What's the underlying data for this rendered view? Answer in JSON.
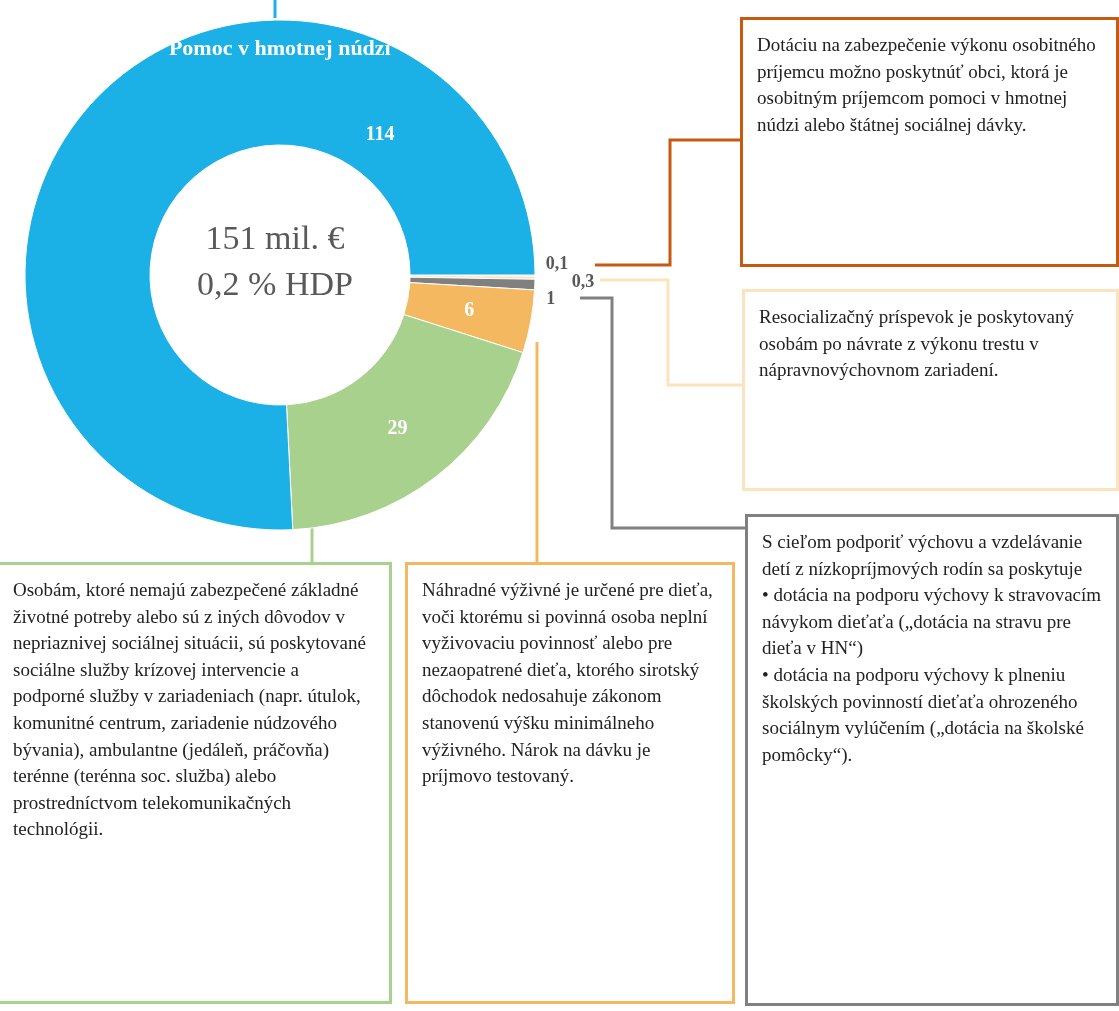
{
  "chart_data": {
    "type": "donut",
    "categories": [
      null,
      null,
      null,
      null,
      null,
      "Pomoc v hmotnej núdzi"
    ],
    "values": [
      0.1,
      0.3,
      1,
      6,
      29,
      114
    ],
    "value_labels": [
      "0,1",
      "0,3",
      "1",
      "6",
      "29",
      "114"
    ],
    "colors": [
      "#c55a11",
      "#fde3bd",
      "#808080",
      "#f4b860",
      "#a9d18e",
      "#1bb1e7"
    ],
    "annotations": [
      "151 mil. €\n0,2 % HDP",
      "Dotáciu na zabezpečenie výkonu osobitného príjemcu možno poskytnúť obci, ktorá je osobitným príjemcom pomoci v hmotnej núdzi alebo štátnej sociálnej dávky.",
      "Resocializačný príspevok je poskytovaný osobám po návrate z výkonu trestu v nápravnovýchovnom zariadení.",
      "S cieľom podporiť výchovu a vzdelávanie detí z nízkopríjmových rodín sa poskytuje\n• dotácia na podporu výchovy k stravovacím návykom dieťaťa („dotácia na stravu pre dieťa v HN“)\n• dotácia na podporu výchovy k plneniu školských povinností dieťaťa ohrozeného sociálnym vylúčením („dotácia na školské pomôcky“).",
      "Náhradné výživné je určené pre dieťa, voči ktorému si povinná osoba neplní vyživovaciu povinnosť alebo pre nezaopatrené dieťa, ktorého sirotský dôchodok nedosahuje zákonom stanovenú výšku minimálneho výživného. Nárok na dávku je príjmovo testovaný.",
      "Osobám, ktoré nemajú zabezpečené základné životné potreby alebo sú z iných dôvodov v nepriaznivej sociálnej situácii, sú poskytované sociálne služby krízovej intervencie a podporné služby v zariadeniach (napr. útulok, komunitné centrum, zariadenie núdzového bývania), ambulantne (jedáleň, práčovňa) terénne (terénna soc. služba) alebo prostredníctvom telekomunikačných technológii."
    ]
  }
}
